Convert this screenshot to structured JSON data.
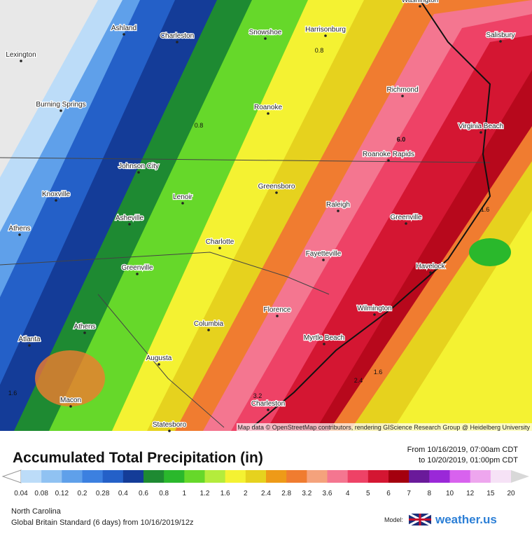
{
  "map": {
    "cities": [
      "Ashland",
      "Charleston",
      "Snowshoe",
      "Harrisonburg",
      "Washington",
      "Lexington",
      "Salisbury",
      "Burning Springs",
      "Richmond",
      "Roanoke",
      "Virginia Beach",
      "Johnson City",
      "Roanoke Rapids",
      "Knoxville",
      "Lenoir",
      "Greensboro",
      "Raleigh",
      "Athens",
      "Asheville",
      "Greenville",
      "Charlotte",
      "Fayetteville",
      "Havelock",
      "Greenville",
      "Florence",
      "Wilmington",
      "Columbia",
      "Athens",
      "Atlanta",
      "Myrtle Beach",
      "Augusta",
      "Macon",
      "Charleston",
      "Statesboro"
    ],
    "contour_labels": [
      "6.0",
      "0.8",
      "0.8",
      "1.6",
      "1.6",
      "2.4",
      "3.2",
      "1.6"
    ],
    "attribution": "Map data © OpenStreetMap contributors, rendering GIScience Research Group @ Heidelberg University"
  },
  "legend": {
    "title": "Accumulated Total Precipitation (in)",
    "period_from": "From 10/16/2019, 07:00am CDT",
    "period_to": "to 10/20/2019, 01:00pm CDT",
    "labels": [
      "0.04",
      "0.08",
      "0.12",
      "0.2",
      "0.28",
      "0.4",
      "0.6",
      "0.8",
      "1",
      "1.2",
      "1.6",
      "2",
      "2.4",
      "2.8",
      "3.2",
      "3.6",
      "4",
      "5",
      "6",
      "7",
      "8",
      "10",
      "12",
      "15",
      "20"
    ],
    "colors": [
      "#bcdcf8",
      "#90c2f2",
      "#5fa0ea",
      "#3c80e0",
      "#2460c8",
      "#143c98",
      "#1e8a32",
      "#2ab82c",
      "#66d82a",
      "#b4ec3c",
      "#f4f232",
      "#e6d21e",
      "#ee9a18",
      "#f07c30",
      "#f4a27c",
      "#f47690",
      "#ee4266",
      "#d41632",
      "#a4000e",
      "#6a1a9a",
      "#9a28d8",
      "#d862ee",
      "#eea6ee",
      "#f6e2f6",
      "#d8d8d8"
    ]
  },
  "footer": {
    "region": "North Carolina",
    "model_run": "Global Britain Standard (6 days) from 10/16/2019/12z",
    "model_label": "Model:",
    "brand": "weather.us"
  }
}
